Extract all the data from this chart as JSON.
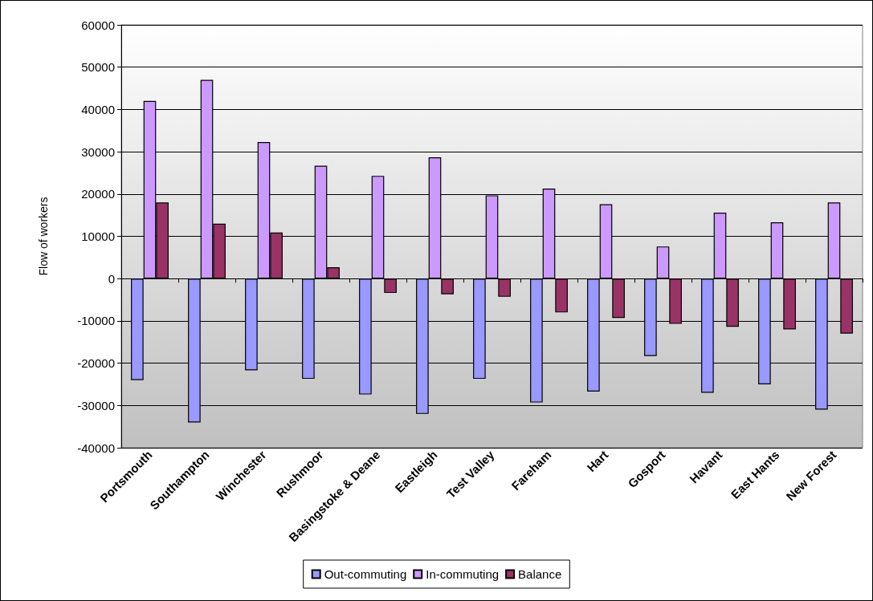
{
  "chart_data": {
    "type": "bar",
    "ylabel": "Flow of workers",
    "categories": [
      "Portsmouth",
      "Southampton",
      "Winchester",
      "Rushmoor",
      "Basingstoke & Deane",
      "Eastleigh",
      "Test Valley",
      "Fareham",
      "Hart",
      "Gosport",
      "Havant",
      "East Hants",
      "New Forest"
    ],
    "series": [
      {
        "name": "Out-commuting",
        "color": "#9999ff",
        "values": [
          -24000,
          -34000,
          -21700,
          -23700,
          -27400,
          -32000,
          -23700,
          -29300,
          -26700,
          -18300,
          -27000,
          -25000,
          -31000
        ]
      },
      {
        "name": "In-commuting",
        "color": "#cc99ff",
        "values": [
          42000,
          47000,
          32300,
          26700,
          24300,
          28700,
          19700,
          21300,
          17600,
          7600,
          15600,
          13300,
          18000
        ]
      },
      {
        "name": "Balance",
        "color": "#993366",
        "values": [
          18000,
          13000,
          10900,
          2700,
          -3400,
          -3700,
          -4300,
          -8000,
          -9300,
          -10700,
          -11400,
          -12000,
          -13000
        ]
      }
    ],
    "ylim": [
      -40000,
      60000
    ],
    "yticks": [
      -40000,
      -30000,
      -20000,
      -10000,
      0,
      10000,
      20000,
      30000,
      40000,
      50000,
      60000
    ],
    "grid": "y",
    "legend": "bottom"
  }
}
